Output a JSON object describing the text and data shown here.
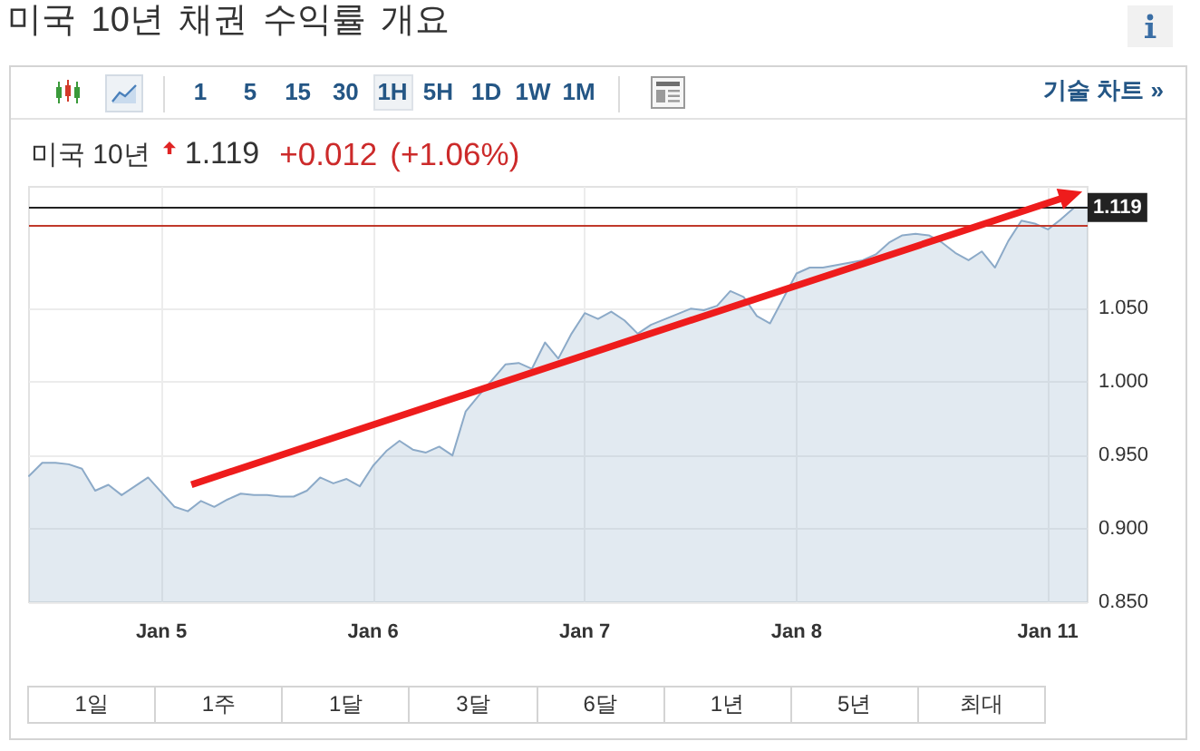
{
  "chart_data": {
    "type": "area",
    "title": "미국 10년 채권 수익률 개요",
    "categories": [
      null,
      null,
      null,
      null,
      null,
      null,
      null,
      null,
      null,
      null,
      "Jan 5",
      null,
      null,
      null,
      null,
      null,
      null,
      null,
      null,
      null,
      null,
      null,
      null,
      null,
      null,
      null,
      "Jan 6",
      null,
      null,
      null,
      null,
      null,
      null,
      null,
      null,
      null,
      null,
      null,
      null,
      null,
      null,
      null,
      "Jan 7",
      null,
      null,
      null,
      null,
      null,
      null,
      null,
      null,
      null,
      null,
      null,
      null,
      null,
      null,
      null,
      "Jan 8",
      null,
      null,
      null,
      null,
      null,
      null,
      null,
      null,
      null,
      null,
      null,
      null,
      null,
      null,
      null,
      null,
      null,
      null,
      "Jan 11",
      null,
      null,
      null
    ],
    "values": [
      0.936,
      0.945,
      0.945,
      0.944,
      0.941,
      0.926,
      0.93,
      0.923,
      0.929,
      0.935,
      0.925,
      0.915,
      0.912,
      0.919,
      0.915,
      0.92,
      0.924,
      0.923,
      0.923,
      0.922,
      0.922,
      0.926,
      0.935,
      0.931,
      0.934,
      0.929,
      0.943,
      0.953,
      0.96,
      0.954,
      0.952,
      0.956,
      0.95,
      0.98,
      0.991,
      null,
      1.012,
      1.013,
      1.009,
      1.027,
      1.016,
      1.033,
      1.047,
      1.043,
      1.048,
      1.042,
      1.033,
      1.039,
      null,
      null,
      1.05,
      1.049,
      1.052,
      1.062,
      1.058,
      1.045,
      1.04,
      null,
      1.074,
      1.078,
      1.078,
      null,
      null,
      1.083,
      1.087,
      1.095,
      1.1,
      1.101,
      1.1,
      1.095,
      1.088,
      1.083,
      1.089,
      1.078,
      1.096,
      1.11,
      1.108,
      1.104,
      1.111,
      1.119,
      1.119
    ],
    "color": "#8caac8",
    "ylim": [
      0.85,
      1.133
    ],
    "yticks": [
      {
        "value": 0.85,
        "label": "0.850"
      },
      {
        "value": 0.9,
        "label": "0.900"
      },
      {
        "value": 0.95,
        "label": "0.950"
      },
      {
        "value": 1.0,
        "label": "1.000"
      },
      {
        "value": 1.05,
        "label": "1.050"
      }
    ],
    "grid": true,
    "ref_lines": [
      {
        "axis": "y",
        "value": 1.119,
        "label": "1.119",
        "color": "#222222"
      },
      {
        "axis": "y",
        "value": 1.107,
        "color": "#c0392b"
      }
    ],
    "annotations": [
      "1 5 15 30 1H 5H 1D 1W 1M",
      "기술 차트 »",
      "미국 10년",
      "1.119",
      "+0.012",
      "(+1.06%)",
      "1일",
      "1주",
      "1달",
      "3달",
      "6달",
      "1년",
      "5년",
      "최대"
    ]
  }
}
